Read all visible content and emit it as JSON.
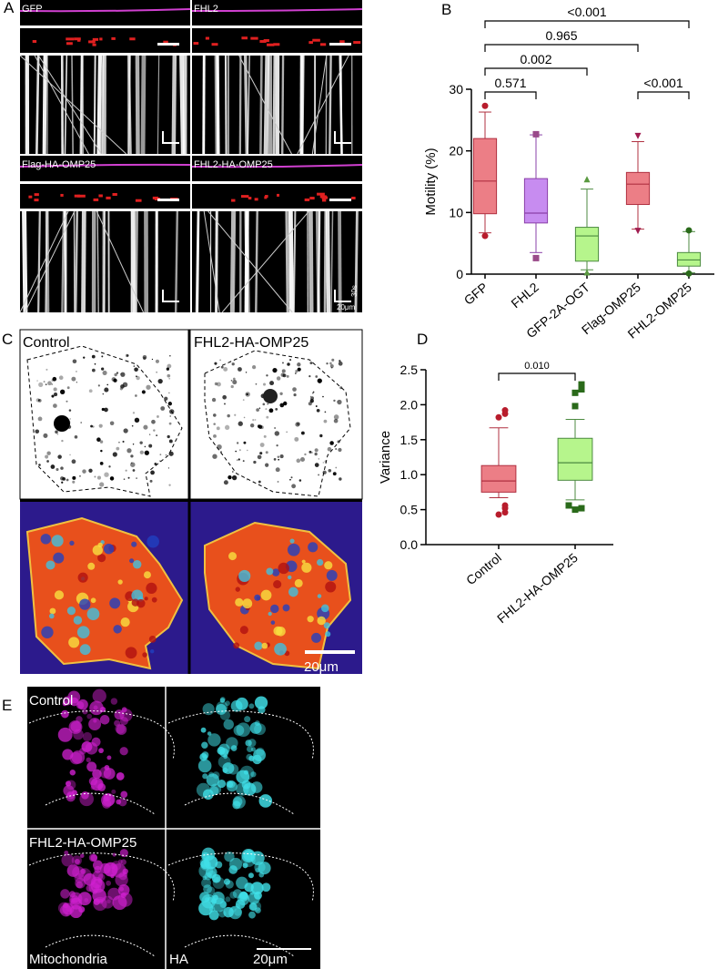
{
  "panels": {
    "A": {
      "letter": "A",
      "labels": [
        "GFP",
        "FHL2",
        "Flag-HA-OMP25",
        "FHL2-HA-OMP25"
      ],
      "time_scale": "30s",
      "length_scale": "20μm"
    },
    "B": {
      "letter": "B"
    },
    "C": {
      "letter": "C",
      "labels": [
        "Control",
        "FHL2-HA-OMP25"
      ],
      "scale": "20μm"
    },
    "D": {
      "letter": "D"
    },
    "E": {
      "letter": "E",
      "labels": [
        "Control",
        "FHL2-HA-OMP25"
      ],
      "channels": [
        "Mitochondria",
        "HA"
      ],
      "scale": "20μm"
    }
  },
  "chart_data": [
    {
      "type": "box",
      "y_label": "Motility (%)",
      "categories": [
        "GFP",
        "FHL2",
        "GFP-2A-OGT",
        "Flag-OMP25",
        "FHL2-OMP25"
      ],
      "whisker_low": [
        6.7,
        3.5,
        0.7,
        7.3,
        0.2
      ],
      "q1": [
        9.8,
        8.3,
        2.1,
        11.3,
        1.3
      ],
      "median": [
        15.1,
        9.9,
        6.2,
        14.6,
        2.3
      ],
      "q3": [
        22,
        15.5,
        7.6,
        16.5,
        3.5
      ],
      "whisker_high": [
        26.3,
        22.6,
        13.8,
        21.5,
        6.9
      ],
      "outliers": [
        [
          6.2,
          27.3
        ],
        [
          2.6,
          22.7
        ],
        [
          0.3,
          15.4
        ],
        [
          7.0,
          22.4
        ],
        [
          0.1,
          7.1
        ]
      ],
      "colors": [
        "#ec7e86",
        "#c78cf0",
        "#b6f58c",
        "#ec7e86",
        "#b6f58c"
      ],
      "edge_colors": [
        "#b03040",
        "#8a40a8",
        "#4c8a40",
        "#b03040",
        "#4c8a40"
      ],
      "outlier_colors": [
        "#b81c2c",
        "#9a4a8a",
        "#5a9a40",
        "#a01c50",
        "#2a6a1a"
      ],
      "markers": [
        "circle",
        "square",
        "triangle",
        "triangle-down",
        "circle"
      ],
      "ylim": [
        0,
        30
      ],
      "yticks": [
        0,
        10,
        20,
        30
      ],
      "comparisons": [
        {
          "label": "0.571",
          "groups": [
            "GFP",
            "FHL2"
          ]
        },
        {
          "label": "0.002",
          "groups": [
            "GFP",
            "GFP-2A-OGT"
          ]
        },
        {
          "label": "0.965",
          "groups": [
            "GFP",
            "Flag-OMP25"
          ]
        },
        {
          "label": "<0.001",
          "groups": [
            "GFP",
            "FHL2-OMP25"
          ]
        },
        {
          "label": "<0.001",
          "groups": [
            "Flag-OMP25",
            "FHL2-OMP25"
          ]
        }
      ]
    },
    {
      "type": "box",
      "y_label": "Variance",
      "categories": [
        "Control",
        "FHL2-HA-OMP25"
      ],
      "whisker_low": [
        0.67,
        0.64
      ],
      "q1": [
        0.75,
        0.92
      ],
      "median": [
        0.91,
        1.17
      ],
      "q3": [
        1.13,
        1.52
      ],
      "whisker_high": [
        1.67,
        1.79
      ],
      "outliers": [
        [
          0.43,
          0.46,
          0.52,
          0.56,
          1.82,
          1.87,
          1.92
        ],
        [
          0.5,
          0.52,
          0.56,
          1.98,
          2.17,
          2.22,
          2.29
        ]
      ],
      "colors": [
        "#ec7e86",
        "#b6f58c"
      ],
      "edge_colors": [
        "#b03040",
        "#4c8a40"
      ],
      "outlier_colors": [
        "#b81c2c",
        "#2a6a1a"
      ],
      "markers": [
        "circle",
        "square"
      ],
      "ylim": [
        0,
        2.5
      ],
      "yticks": [
        {
          "value": 0,
          "label": "0.0"
        },
        0.5,
        {
          "value": 1,
          "label": "1.0"
        },
        1.5,
        {
          "value": 2,
          "label": "2.0"
        },
        2.5
      ],
      "comparisons": [
        {
          "label": "0.010",
          "groups": [
            "Control",
            "FHL2-HA-OMP25"
          ]
        }
      ]
    }
  ]
}
